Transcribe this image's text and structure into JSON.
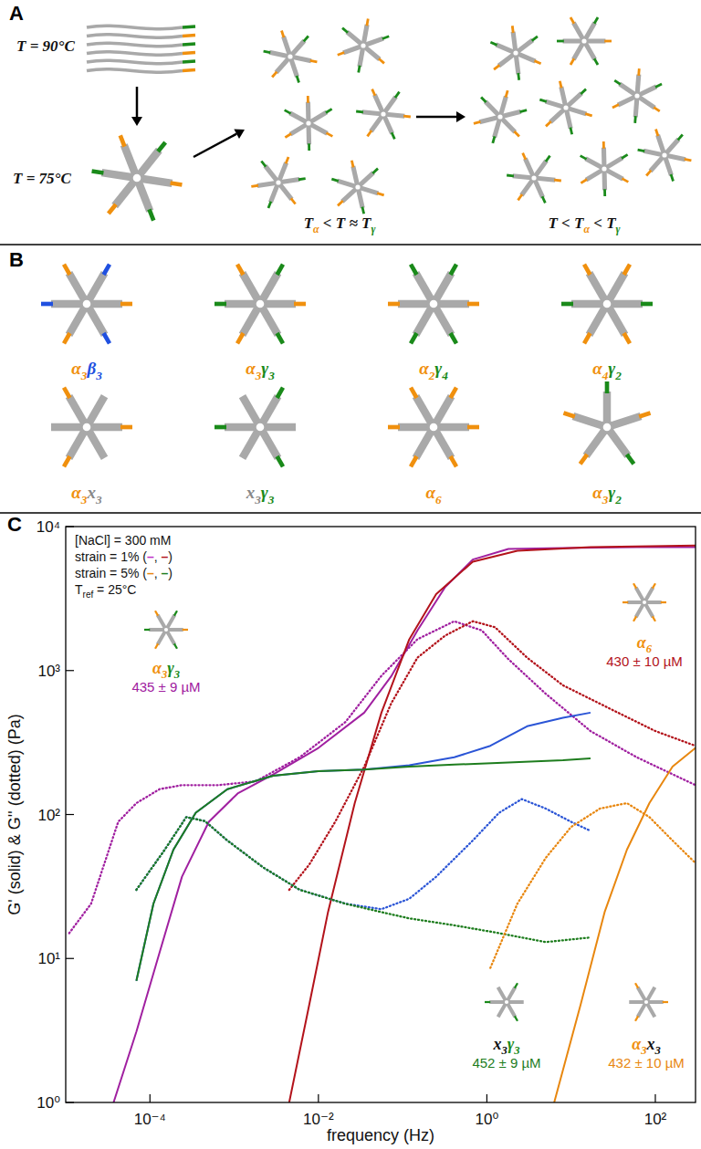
{
  "panels": {
    "a": "A",
    "b": "B",
    "c": "C"
  },
  "diagram_a": {
    "labels": [
      "T = 90°C",
      "T = 75°C",
      "Tα < T ≈ Tγ",
      "T < Tα < Tγ"
    ]
  },
  "diagram_b": {
    "stars": [
      "α3β3",
      "α3γ3",
      "α2γ4",
      "α4γ2",
      "α3x3",
      "x3γ3",
      "α6",
      "α3γ2"
    ]
  },
  "chart_data": {
    "type": "line",
    "log": true,
    "grid": false,
    "x_label": "frequency (Hz)",
    "y_label": "G' (solid) & G'' (dotted) (Pa)",
    "xlim": [
      1e-05,
      300
    ],
    "ylim": [
      1,
      10000
    ],
    "xticks": [
      {
        "value": 0.0001,
        "label": "10⁻⁴"
      },
      {
        "value": 0.01,
        "label": "10⁻²"
      },
      {
        "value": 1,
        "label": "10⁰"
      },
      {
        "value": 100,
        "label": "10²"
      }
    ],
    "yticks": [
      {
        "value": 1,
        "label": "10⁰"
      },
      {
        "value": 10,
        "label": "10¹"
      },
      {
        "value": 100,
        "label": "10²"
      },
      {
        "value": 1000,
        "label": "10³"
      },
      {
        "value": 10000,
        "label": "10⁴"
      }
    ],
    "notes": [
      {
        "text": "[NaCl] = 300 mM",
        "colors": []
      },
      {
        "text": "strain = 1% (–, –)",
        "colors": [
          "#c030c8",
          "#b3131b"
        ]
      },
      {
        "text": "strain = 5% (–, –)",
        "colors": [
          "#e8870f",
          "#1e7d1e"
        ]
      },
      {
        "text": "Tref = 25°C",
        "colors": []
      }
    ],
    "annotations": [
      {
        "text": "α3γ3",
        "conc": "435 ± 9 µM",
        "color": "#a020a0"
      },
      {
        "text": "α6",
        "conc": "430 ± 10 µM",
        "color": "#b3131b"
      },
      {
        "text": "x3γ3",
        "conc": "452 ± 9 µM",
        "color": "#1e7d1e"
      },
      {
        "text": "α3x3",
        "conc": "432 ± 10 µM",
        "color": "#e8870f"
      }
    ],
    "series": [
      {
        "color": "#a020a0",
        "line_style": "solid",
        "x": [
          3.7e-05,
          6.9e-05,
          0.00013,
          0.00024,
          0.0005,
          0.0011,
          0.0029,
          0.01,
          0.035,
          0.073,
          0.15,
          0.32,
          0.68,
          1.8,
          8,
          60,
          300
        ],
        "values": [
          1,
          3.1,
          11,
          37,
          89,
          140,
          190,
          290,
          510,
          910,
          1900,
          3800,
          5900,
          7000,
          7100,
          7200,
          7200
        ]
      },
      {
        "color": "#a020a0",
        "line_style": "dotted",
        "x": [
          1.1e-05,
          2e-05,
          4.2e-05,
          6.9e-05,
          0.00013,
          0.00024,
          0.00065,
          0.0018,
          0.006,
          0.021,
          0.056,
          0.15,
          0.41,
          0.87,
          1.8,
          5,
          17,
          60,
          300
        ],
        "values": [
          15,
          24,
          89,
          120,
          150,
          160,
          160,
          170,
          250,
          440,
          920,
          1650,
          2200,
          1900,
          1200,
          690,
          380,
          250,
          160
        ]
      },
      {
        "color": "#b3131b",
        "line_style": "solid",
        "x": [
          0.0045,
          0.0078,
          0.013,
          0.027,
          0.056,
          0.12,
          0.25,
          0.68,
          2.3,
          17,
          300
        ],
        "values": [
          1,
          4.8,
          21,
          120,
          510,
          1650,
          3400,
          5700,
          6800,
          7200,
          7400
        ]
      },
      {
        "color": "#b3131b",
        "line_style": "dotted",
        "x": [
          0.0045,
          0.0078,
          0.016,
          0.035,
          0.073,
          0.15,
          0.32,
          0.68,
          1.25,
          3,
          8,
          36,
          100,
          300
        ],
        "values": [
          30,
          45,
          90,
          215,
          590,
          1230,
          1750,
          2200,
          2000,
          1230,
          790,
          510,
          380,
          300
        ]
      },
      {
        "color": "#2b55d6",
        "line_style": "solid",
        "x": [
          6.9e-05,
          0.00011,
          0.00019,
          0.00035,
          0.00083,
          0.0029,
          0.01,
          0.035,
          0.12,
          0.41,
          1.1,
          3,
          8,
          17
        ],
        "values": [
          7,
          24,
          57,
          103,
          150,
          186,
          200,
          205,
          220,
          250,
          300,
          410,
          470,
          510
        ]
      },
      {
        "color": "#1e7d1e",
        "line_style": "solid",
        "x": [
          6.9e-05,
          0.00011,
          0.00019,
          0.00035,
          0.00083,
          0.0029,
          0.01,
          0.035,
          0.12,
          0.41,
          1.8,
          8,
          17
        ],
        "values": [
          7,
          24,
          57,
          103,
          150,
          186,
          200,
          205,
          215,
          222,
          230,
          238,
          245
        ]
      },
      {
        "color": "#2b55d6",
        "line_style": "dotted",
        "x": [
          6.9e-05,
          0.00015,
          0.00027,
          0.00045,
          0.00083,
          0.0022,
          0.006,
          0.021,
          0.056,
          0.12,
          0.25,
          0.68,
          1.4,
          2.6,
          5,
          10,
          17
        ],
        "values": [
          30,
          57,
          96,
          90,
          66,
          43,
          30,
          24,
          22,
          26,
          37,
          66,
          103,
          128,
          110,
          89,
          77
        ]
      },
      {
        "color": "#1e7d1e",
        "line_style": "dotted",
        "x": [
          6.9e-05,
          0.00015,
          0.00027,
          0.00045,
          0.00083,
          0.0022,
          0.006,
          0.021,
          0.056,
          0.12,
          0.41,
          1.4,
          5,
          17
        ],
        "values": [
          30,
          57,
          96,
          90,
          66,
          43,
          30,
          24,
          21,
          19,
          17,
          15,
          13,
          14
        ]
      },
      {
        "color": "#e8870f",
        "line_style": "solid",
        "x": [
          6.3,
          13,
          25,
          46,
          85,
          160,
          300
        ],
        "values": [
          1,
          4.8,
          21,
          57,
          120,
          215,
          290
        ]
      },
      {
        "color": "#e8870f",
        "line_style": "dotted",
        "x": [
          1.1,
          2.3,
          5,
          10,
          22,
          46,
          85,
          160,
          300
        ],
        "values": [
          8.6,
          24,
          50,
          82,
          110,
          120,
          96,
          66,
          46
        ]
      }
    ]
  }
}
